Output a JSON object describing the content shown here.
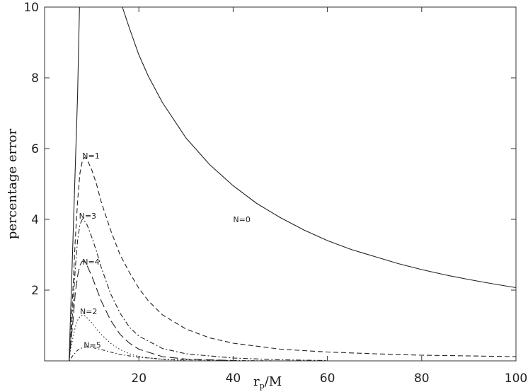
{
  "chart_data": {
    "type": "line",
    "title": "",
    "xlabel": "r_p/M",
    "xlabel_main": "r",
    "xlabel_sub": "p",
    "xlabel_rest": "/M",
    "ylabel": "percentage error",
    "xlim": [
      0,
      100
    ],
    "ylim": [
      0,
      10
    ],
    "grid": false,
    "x_ticks": [
      20,
      40,
      60,
      80,
      100
    ],
    "x_tick_labels": [
      "20",
      "40",
      "60",
      "80",
      "100"
    ],
    "y_ticks": [
      2,
      4,
      6,
      8,
      10
    ],
    "y_tick_labels": [
      "2",
      "4",
      "6",
      "8",
      "10"
    ],
    "series": [
      {
        "name": "N=0",
        "style": "solid",
        "x": [
          16.5,
          18,
          20,
          22,
          25,
          30,
          35,
          40,
          45,
          50,
          55,
          60,
          65,
          70,
          75,
          80,
          85,
          90,
          95,
          100
        ],
        "y": [
          10.0,
          9.4,
          8.65,
          8.05,
          7.3,
          6.3,
          5.55,
          4.95,
          4.45,
          4.05,
          3.7,
          3.4,
          3.15,
          2.95,
          2.75,
          2.58,
          2.43,
          2.3,
          2.18,
          2.07
        ]
      },
      {
        "name": "N=1",
        "style": "dashed",
        "x": [
          5.2,
          5.5,
          6,
          6.5,
          7,
          7.5,
          8,
          8.5,
          9,
          10,
          11,
          12,
          14,
          16,
          18,
          20,
          22,
          25,
          30,
          35,
          40,
          50,
          60,
          70,
          80,
          90,
          100
        ],
        "y": [
          0.0,
          0.6,
          2.0,
          3.4,
          4.5,
          5.3,
          5.65,
          5.75,
          5.7,
          5.4,
          5.0,
          4.5,
          3.7,
          3.0,
          2.5,
          2.05,
          1.7,
          1.3,
          0.9,
          0.65,
          0.5,
          0.33,
          0.25,
          0.2,
          0.16,
          0.14,
          0.12
        ]
      },
      {
        "name": "N=3",
        "style": "dashdot",
        "x": [
          5.2,
          5.5,
          6,
          6.5,
          7,
          7.5,
          8,
          8.5,
          9,
          10,
          11,
          12,
          14,
          16,
          18,
          20,
          25,
          30,
          40,
          50,
          60
        ],
        "y": [
          0.0,
          0.5,
          1.5,
          2.6,
          3.4,
          3.85,
          4.0,
          3.95,
          3.85,
          3.5,
          3.1,
          2.65,
          1.9,
          1.35,
          0.95,
          0.7,
          0.35,
          0.2,
          0.08,
          0.03,
          0.01
        ]
      },
      {
        "name": "N=4",
        "style": "longdash",
        "x": [
          5.2,
          5.5,
          6,
          6.5,
          7,
          7.5,
          8,
          8.5,
          9,
          10,
          11,
          12,
          14,
          16,
          18,
          20,
          25,
          30,
          40
        ],
        "y": [
          0.0,
          0.4,
          1.1,
          1.9,
          2.4,
          2.7,
          2.82,
          2.8,
          2.7,
          2.4,
          2.05,
          1.7,
          1.15,
          0.75,
          0.5,
          0.33,
          0.12,
          0.05,
          0.01
        ]
      },
      {
        "name": "N=2",
        "style": "dotted",
        "x": [
          5.2,
          5.5,
          6,
          6.5,
          7,
          7.5,
          8,
          8.5,
          9,
          10,
          11,
          12,
          14,
          16,
          18,
          20,
          25,
          30
        ],
        "y": [
          0.0,
          0.3,
          0.65,
          0.95,
          1.15,
          1.25,
          1.3,
          1.28,
          1.22,
          1.08,
          0.9,
          0.75,
          0.5,
          0.32,
          0.2,
          0.12,
          0.04,
          0.01
        ]
      },
      {
        "name": "N=5",
        "style": "dotdash",
        "x": [
          5.2,
          6,
          7,
          8,
          9,
          10,
          12,
          14,
          16,
          20,
          25,
          30,
          40,
          50,
          60
        ],
        "y": [
          0.0,
          0.15,
          0.3,
          0.37,
          0.4,
          0.38,
          0.32,
          0.25,
          0.18,
          0.1,
          0.05,
          0.03,
          0.01,
          0.0,
          0.0
        ]
      },
      {
        "name": "",
        "style": "solid",
        "x": [
          5.2,
          5.8,
          6.4,
          7.0,
          7.4
        ],
        "y": [
          0.0,
          2.5,
          5.0,
          7.5,
          10.0
        ]
      }
    ],
    "annotations": [
      {
        "text": "N=0",
        "x": 40,
        "y": 4.0
      },
      {
        "text": "N=1",
        "x": 8.0,
        "y": 5.8
      },
      {
        "text": "N=3",
        "x": 7.3,
        "y": 4.1
      },
      {
        "text": "N=4",
        "x": 8.0,
        "y": 2.8
      },
      {
        "text": "N=2",
        "x": 7.5,
        "y": 1.4
      },
      {
        "text": "N=5",
        "x": 8.3,
        "y": 0.45
      }
    ]
  }
}
